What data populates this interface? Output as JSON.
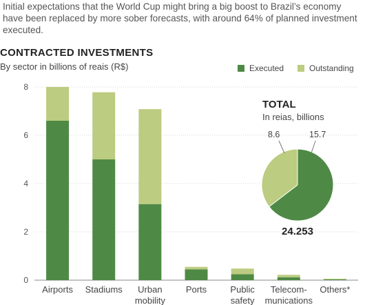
{
  "intro": "Initial expectations that the World Cup might bring a big boost to Brazil’s economy have been replaced by more sober forecasts, with around 64% of planned investment executed.",
  "colors": {
    "executed": "#4e8a45",
    "outstanding": "#bccc80",
    "axis": "#888888",
    "grid": "#d6d6d6"
  },
  "chart_data": [
    {
      "type": "bar",
      "stacked": true,
      "title": "CONTRACTED INVESTMENTS",
      "subtitle": "By sector in billions of reais (R$)",
      "categories": [
        [
          "Airports"
        ],
        [
          "Stadiums"
        ],
        [
          "Urban",
          "mobility"
        ],
        [
          "Ports"
        ],
        [
          "Public",
          "safety"
        ],
        [
          "Telecom-",
          "munications"
        ],
        [
          "Others*"
        ]
      ],
      "series": [
        {
          "name": "Executed",
          "values": [
            6.6,
            5.0,
            3.15,
            0.45,
            0.25,
            0.12,
            0.03
          ]
        },
        {
          "name": "Outstanding",
          "values": [
            1.4,
            2.78,
            3.93,
            0.1,
            0.23,
            0.1,
            0.03
          ]
        }
      ],
      "ylim": [
        0,
        8
      ],
      "yticks": [
        0,
        2,
        4,
        6,
        8
      ],
      "legend_position": "top-right"
    },
    {
      "type": "pie",
      "title": "TOTAL",
      "subtitle": "In reias, billions",
      "slices": [
        {
          "label": "8.6",
          "value": 8.6,
          "series": "Outstanding"
        },
        {
          "label": "15.7",
          "value": 15.7,
          "series": "Executed"
        }
      ],
      "total_label": "24.253"
    }
  ]
}
